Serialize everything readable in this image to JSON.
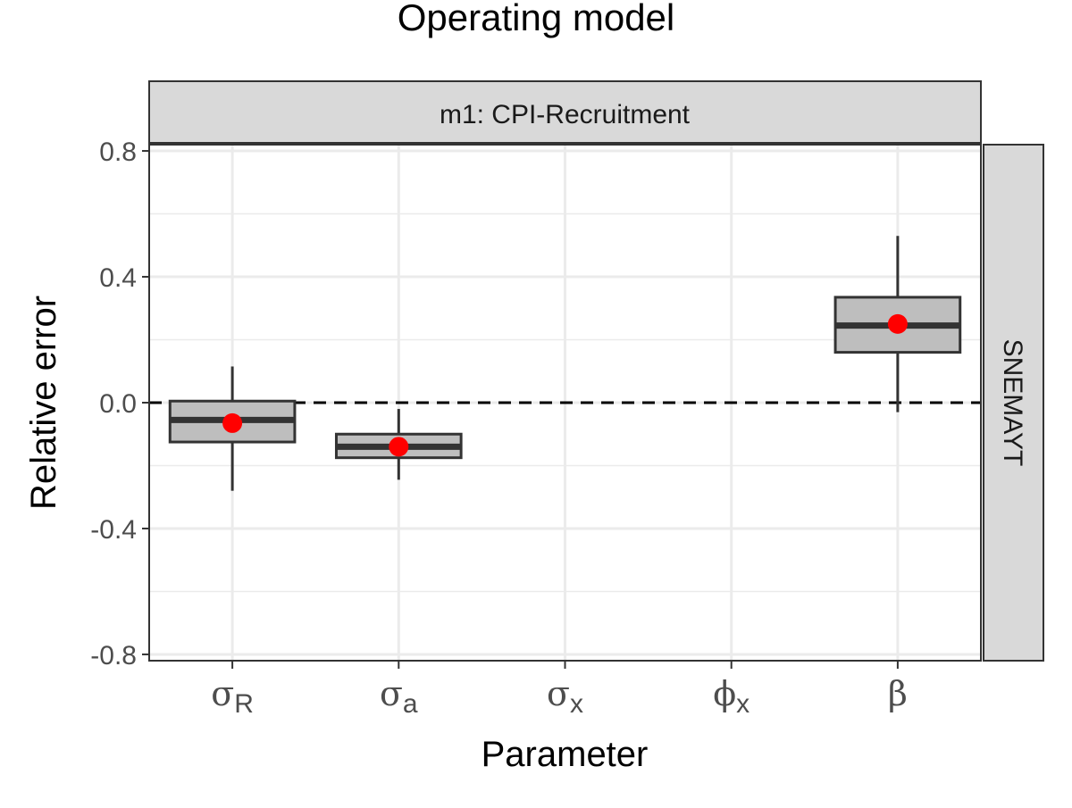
{
  "chart_data": {
    "type": "box",
    "title": "Operating model",
    "xlabel": "Parameter",
    "ylabel": "Relative error",
    "facet_top": "m1:  CPI-Recruitment",
    "facet_right": "SNEMAYT",
    "ylim": [
      -0.82,
      0.82
    ],
    "yticks": [
      0.8,
      0.4,
      0.0,
      -0.4,
      -0.8
    ],
    "ytick_labels": [
      "0.8",
      "0.4",
      "0.0",
      "-0.4",
      "-0.8"
    ],
    "reference_line": 0.0,
    "categories": [
      {
        "symbol": "σ",
        "sub": "R"
      },
      {
        "symbol": "σ",
        "sub": "a"
      },
      {
        "symbol": "σ",
        "sub": "x"
      },
      {
        "symbol": "ϕ",
        "sub": "x"
      },
      {
        "symbol": "β",
        "sub": ""
      }
    ],
    "boxes": [
      {
        "category_index": 0,
        "whisker_low": -0.28,
        "q1": -0.125,
        "median": -0.055,
        "q3": 0.005,
        "whisker_high": 0.115,
        "mean": -0.065
      },
      {
        "category_index": 1,
        "whisker_low": -0.245,
        "q1": -0.175,
        "median": -0.14,
        "q3": -0.1,
        "whisker_high": -0.02,
        "mean": -0.14
      },
      {
        "category_index": 4,
        "whisker_low": -0.03,
        "q1": 0.16,
        "median": 0.245,
        "q3": 0.335,
        "whisker_high": 0.53,
        "mean": 0.25
      }
    ],
    "colors": {
      "box_fill": "#bebebe",
      "box_line": "#333333",
      "mean_point": "#ff0000",
      "strip_fill": "#d9d9d9",
      "grid": "#ebebeb"
    },
    "grid": true
  }
}
